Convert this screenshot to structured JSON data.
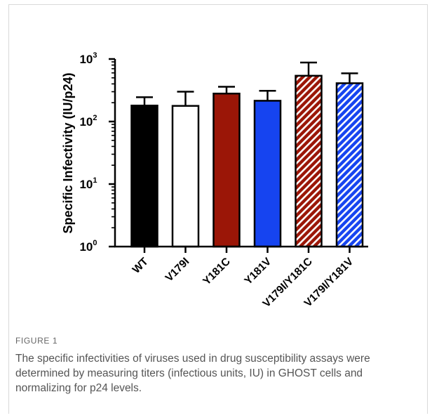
{
  "figure": {
    "label": "FIGURE 1",
    "caption": "The specific infectivities of viruses used in drug susceptibility assays were determined by measuring titers (infectious units, IU) in GHOST cells and normalizing for p24 levels."
  },
  "colors": {
    "black": "#000000",
    "white": "#ffffff",
    "dark_red": "#9b1607",
    "blue": "#1644f0"
  },
  "chart_data": {
    "type": "bar",
    "ylabel": "Specific Infectivity (IU/p24)",
    "yscale": "log",
    "ylim": [
      1,
      1000
    ],
    "yticks": [
      {
        "base": "10",
        "exp": "0",
        "value": 1
      },
      {
        "base": "10",
        "exp": "1",
        "value": 10
      },
      {
        "base": "10",
        "exp": "2",
        "value": 100
      },
      {
        "base": "10",
        "exp": "3",
        "value": 1000
      }
    ],
    "categories": [
      "WT",
      "V179I",
      "Y181C",
      "Y181V",
      "V179I/Y181C",
      "V179I/Y181V"
    ],
    "values": [
      180,
      178,
      280,
      215,
      540,
      410
    ],
    "error_upper": [
      245,
      300,
      360,
      310,
      880,
      590
    ],
    "fills": [
      "black",
      "white",
      "dark_red",
      "blue",
      "dark_red_hatched",
      "blue_hatched"
    ],
    "grid": false,
    "legend": "none"
  }
}
